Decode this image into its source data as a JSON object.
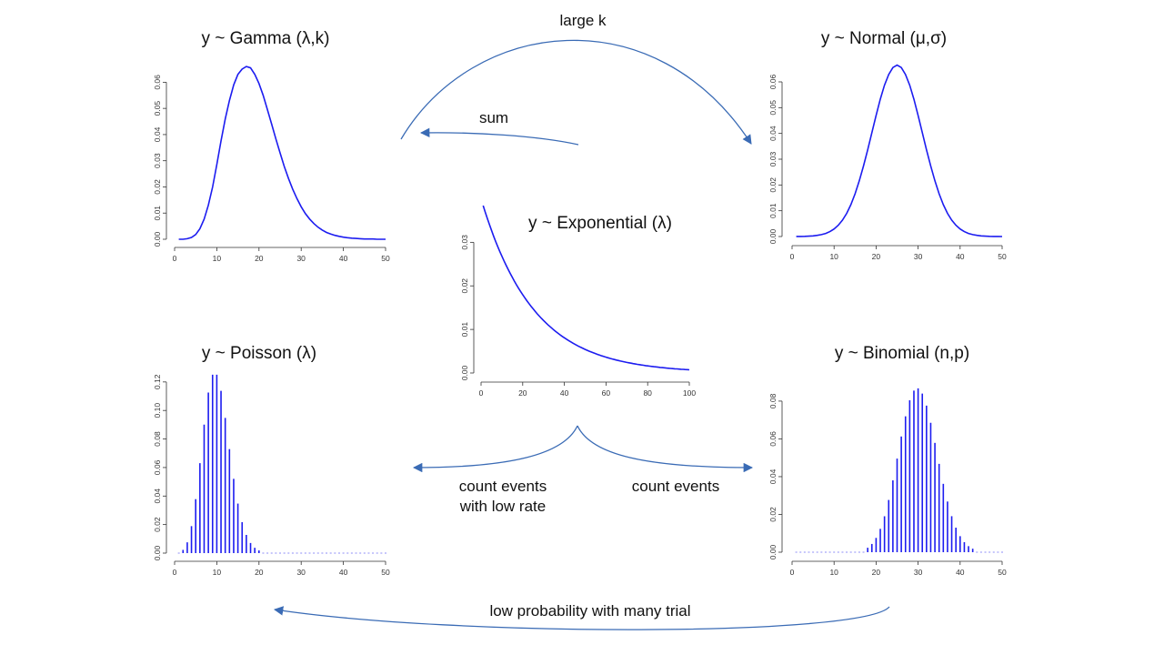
{
  "titles": {
    "gamma": "y ~ Gamma (λ,k)",
    "normal": "y ~ Normal (μ,σ)",
    "exponential": "y ~ Exponential  (λ)",
    "poisson": "y ~ Poisson (λ)",
    "binomial": "y ~ Binomial (n,p)"
  },
  "arrows": {
    "large_k": "large k",
    "sum": "sum",
    "count_low_rate_line1": "count events",
    "count_low_rate_line2": "with low rate",
    "count_events": "count events",
    "low_prob": "low probability with many trial"
  },
  "colors": {
    "curve": "#1c1cf0",
    "arrow": "#3a6bb5",
    "axis": "#333333"
  },
  "chart_data": [
    {
      "id": "gamma",
      "type": "line",
      "xlim": [
        0,
        50
      ],
      "ylim": [
        0,
        0.065
      ],
      "xticks": [
        "0",
        "10",
        "20",
        "30",
        "40",
        "50"
      ],
      "yticks": [
        "0.00",
        "0.01",
        "0.02",
        "0.03",
        "0.04",
        "0.05",
        "0.06"
      ],
      "x": [
        1,
        2,
        3,
        4,
        5,
        6,
        7,
        8,
        9,
        10,
        11,
        12,
        13,
        14,
        15,
        16,
        17,
        18,
        19,
        20,
        21,
        22,
        23,
        24,
        25,
        26,
        27,
        28,
        29,
        30,
        31,
        32,
        33,
        34,
        35,
        36,
        37,
        38,
        39,
        40,
        41,
        42,
        43,
        44,
        45,
        46,
        47,
        48,
        49,
        50
      ],
      "y": [
        0,
        0,
        0.0002,
        0.0007,
        0.0018,
        0.004,
        0.0077,
        0.013,
        0.02,
        0.0285,
        0.0375,
        0.046,
        0.053,
        0.059,
        0.063,
        0.065,
        0.066,
        0.0655,
        0.063,
        0.0595,
        0.055,
        0.0495,
        0.044,
        0.0383,
        0.033,
        0.0278,
        0.0232,
        0.0191,
        0.0155,
        0.0124,
        0.0098,
        0.0077,
        0.006,
        0.0046,
        0.0035,
        0.0026,
        0.002,
        0.0015,
        0.0011,
        0.0008,
        0.0006,
        0.0004,
        0.0003,
        0.0002,
        0.0001,
        0.0001,
        0.0001,
        0,
        0,
        0
      ]
    },
    {
      "id": "normal",
      "type": "line",
      "xlim": [
        0,
        50
      ],
      "ylim": [
        0,
        0.066
      ],
      "xticks": [
        "0",
        "10",
        "20",
        "30",
        "40",
        "50"
      ],
      "yticks": [
        "0.00",
        "0.01",
        "0.02",
        "0.03",
        "0.04",
        "0.05",
        "0.06"
      ],
      "mean": 25,
      "sd": 6,
      "x_range": [
        1,
        50
      ]
    },
    {
      "id": "exponential",
      "type": "line",
      "xlim": [
        0,
        100
      ],
      "ylim": [
        0,
        0.033
      ],
      "xticks": [
        "0",
        "20",
        "40",
        "60",
        "80",
        "100"
      ],
      "yticks": [
        "0.00",
        "0.01",
        "0.02",
        "0.03"
      ],
      "rate": 0.04,
      "y0": 0.04,
      "x_range": [
        1,
        100
      ]
    },
    {
      "id": "poisson",
      "type": "bar",
      "xlim": [
        0,
        50
      ],
      "ylim": [
        0,
        0.125
      ],
      "xticks": [
        "0",
        "10",
        "20",
        "30",
        "40",
        "50"
      ],
      "yticks": [
        "0.00",
        "0.02",
        "0.04",
        "0.06",
        "0.08",
        "0.10",
        "0.12"
      ],
      "lambda": 10,
      "x_range": [
        1,
        50
      ]
    },
    {
      "id": "binomial",
      "type": "bar",
      "xlim": [
        0,
        50
      ],
      "ylim": [
        0,
        0.092
      ],
      "xticks": [
        "0",
        "10",
        "20",
        "30",
        "40",
        "50"
      ],
      "yticks": [
        "0.00",
        "0.02",
        "0.04",
        "0.06",
        "0.08"
      ],
      "n": 100,
      "p": 0.3,
      "x_range": [
        1,
        50
      ]
    }
  ]
}
